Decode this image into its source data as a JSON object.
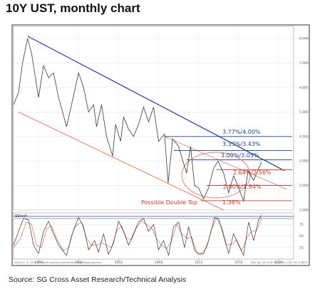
{
  "title": "10Y UST, monthly chart",
  "source": "Source: SG Cross Asset Research/Technical Analysis",
  "copyright": "CQG Inc. © 2016 All rights reserved worldwide. http://www.cqg.com",
  "timestamp": "Mon Apr 20 2018 15:43:05, CQG 19.12.8022",
  "colors": {
    "price": "#3a3a3a",
    "trend_blue": "#1f3f8a",
    "trend_red": "#d9826d",
    "level_red": "#c0392b",
    "stoch_k": "#333333",
    "stoch_d": "#d9826d",
    "stoch_band": "#3b4fa0"
  },
  "chart_data": [
    {
      "type": "line",
      "x_ticks": [
        "1996",
        "2000",
        "2004",
        "2008",
        "2012",
        "2016",
        "2020"
      ],
      "y_ticks": [
        "1.000",
        "2.000",
        "3.000",
        "4.000",
        "5.000",
        "6.000",
        "7.000",
        "8.000"
      ],
      "ylim": [
        1.0,
        8.5
      ],
      "xlim": [
        1993.5,
        2021.5
      ],
      "annotations": {
        "levels_blue": [
          "3.77%/4.00%",
          "3.33%/3.43%",
          "3.00%/3.05%"
        ],
        "levels_red": [
          "2.64%/2.56%",
          "2.00%/1.94%",
          "1.38%"
        ],
        "pattern": "Possible Double Top"
      },
      "level_values": [
        4.0,
        3.43,
        3.05,
        2.64,
        2.0,
        1.38
      ],
      "series": [
        {
          "values": [
            [
              1993.5,
              5.3
            ],
            [
              1994.0,
              5.8
            ],
            [
              1994.4,
              7.0
            ],
            [
              1994.9,
              8.0
            ],
            [
              1995.3,
              7.4
            ],
            [
              1995.8,
              6.1
            ],
            [
              1996.0,
              5.6
            ],
            [
              1996.5,
              6.9
            ],
            [
              1997.0,
              6.4
            ],
            [
              1997.5,
              6.6
            ],
            [
              1998.0,
              5.6
            ],
            [
              1998.8,
              4.4
            ],
            [
              1999.3,
              5.3
            ],
            [
              2000.0,
              6.6
            ],
            [
              2000.5,
              6.0
            ],
            [
              2001.0,
              5.0
            ],
            [
              2001.5,
              5.3
            ],
            [
              2001.8,
              4.4
            ],
            [
              2002.3,
              5.3
            ],
            [
              2002.8,
              4.0
            ],
            [
              2003.4,
              3.2
            ],
            [
              2003.7,
              4.5
            ],
            [
              2004.2,
              3.8
            ],
            [
              2004.5,
              4.8
            ],
            [
              2005.0,
              4.3
            ],
            [
              2005.5,
              4.0
            ],
            [
              2006.0,
              4.5
            ],
            [
              2006.5,
              5.2
            ],
            [
              2007.0,
              4.6
            ],
            [
              2007.5,
              5.2
            ],
            [
              2008.0,
              3.8
            ],
            [
              2008.6,
              4.1
            ],
            [
              2008.95,
              2.1
            ],
            [
              2009.4,
              3.9
            ],
            [
              2010.0,
              3.6
            ],
            [
              2010.8,
              2.5
            ],
            [
              2011.2,
              3.6
            ],
            [
              2011.6,
              2.0
            ],
            [
              2012.0,
              1.9
            ],
            [
              2012.5,
              1.45
            ],
            [
              2013.0,
              1.9
            ],
            [
              2013.5,
              2.7
            ],
            [
              2013.95,
              3.0
            ],
            [
              2014.5,
              2.5
            ],
            [
              2015.0,
              1.7
            ],
            [
              2015.5,
              2.4
            ],
            [
              2016.0,
              1.9
            ],
            [
              2016.5,
              1.37
            ],
            [
              2016.95,
              2.6
            ],
            [
              2017.5,
              2.2
            ],
            [
              2018.0,
              2.7
            ],
            [
              2018.3,
              2.95
            ]
          ]
        }
      ]
    },
    {
      "type": "line",
      "label": "SStoch",
      "y_ticks": [
        "25",
        "50",
        "75"
      ],
      "ylim": [
        0,
        100
      ],
      "series": [
        {
          "values": [
            [
              1993.5,
              30
            ],
            [
              1994.0,
              60
            ],
            [
              1994.5,
              88
            ],
            [
              1995.0,
              85
            ],
            [
              1995.5,
              30
            ],
            [
              1996.0,
              12
            ],
            [
              1996.5,
              60
            ],
            [
              1997.0,
              82
            ],
            [
              1997.5,
              55
            ],
            [
              1998.0,
              30
            ],
            [
              1998.8,
              8
            ],
            [
              1999.3,
              50
            ],
            [
              2000.0,
              90
            ],
            [
              2000.5,
              70
            ],
            [
              2001.0,
              20
            ],
            [
              2001.6,
              40
            ],
            [
              2002.0,
              15
            ],
            [
              2002.5,
              55
            ],
            [
              2003.0,
              10
            ],
            [
              2003.5,
              35
            ],
            [
              2004.0,
              82
            ],
            [
              2004.5,
              60
            ],
            [
              2005.0,
              30
            ],
            [
              2005.5,
              55
            ],
            [
              2006.0,
              80
            ],
            [
              2006.5,
              88
            ],
            [
              2007.0,
              60
            ],
            [
              2007.5,
              75
            ],
            [
              2008.0,
              20
            ],
            [
              2008.5,
              40
            ],
            [
              2009.0,
              8
            ],
            [
              2009.5,
              70
            ],
            [
              2010.0,
              80
            ],
            [
              2010.6,
              25
            ],
            [
              2011.0,
              70
            ],
            [
              2011.6,
              20
            ],
            [
              2012.0,
              10
            ],
            [
              2012.5,
              12
            ],
            [
              2013.0,
              40
            ],
            [
              2013.6,
              90
            ],
            [
              2014.0,
              88
            ],
            [
              2014.5,
              50
            ],
            [
              2015.0,
              12
            ],
            [
              2015.5,
              55
            ],
            [
              2016.0,
              30
            ],
            [
              2016.5,
              8
            ],
            [
              2017.0,
              80
            ],
            [
              2017.5,
              40
            ],
            [
              2018.0,
              85
            ],
            [
              2018.3,
              95
            ]
          ]
        },
        {
          "values": [
            [
              1993.5,
              25
            ],
            [
              1994.2,
              45
            ],
            [
              1994.8,
              80
            ],
            [
              1995.3,
              75
            ],
            [
              1995.8,
              30
            ],
            [
              1996.3,
              25
            ],
            [
              1996.8,
              65
            ],
            [
              1997.3,
              72
            ],
            [
              1997.8,
              45
            ],
            [
              1998.5,
              18
            ],
            [
              1999.0,
              25
            ],
            [
              1999.6,
              70
            ],
            [
              2000.3,
              80
            ],
            [
              2000.8,
              45
            ],
            [
              2001.3,
              30
            ],
            [
              2001.8,
              30
            ],
            [
              2002.3,
              35
            ],
            [
              2002.8,
              30
            ],
            [
              2003.3,
              25
            ],
            [
              2003.8,
              60
            ],
            [
              2004.3,
              72
            ],
            [
              2004.8,
              45
            ],
            [
              2005.3,
              42
            ],
            [
              2005.8,
              68
            ],
            [
              2006.3,
              82
            ],
            [
              2006.8,
              75
            ],
            [
              2007.3,
              68
            ],
            [
              2007.8,
              45
            ],
            [
              2008.3,
              30
            ],
            [
              2008.8,
              22
            ],
            [
              2009.3,
              40
            ],
            [
              2009.8,
              75
            ],
            [
              2010.3,
              55
            ],
            [
              2010.8,
              45
            ],
            [
              2011.3,
              48
            ],
            [
              2011.8,
              15
            ],
            [
              2012.3,
              12
            ],
            [
              2012.8,
              25
            ],
            [
              2013.3,
              65
            ],
            [
              2013.8,
              88
            ],
            [
              2014.3,
              70
            ],
            [
              2014.8,
              30
            ],
            [
              2015.3,
              32
            ],
            [
              2015.8,
              42
            ],
            [
              2016.3,
              18
            ],
            [
              2016.8,
              45
            ],
            [
              2017.3,
              60
            ],
            [
              2017.8,
              62
            ],
            [
              2018.3,
              88
            ]
          ]
        }
      ]
    }
  ]
}
